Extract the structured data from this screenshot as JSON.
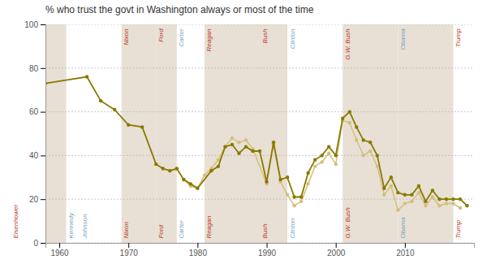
{
  "chart_data": {
    "type": "line",
    "title": "% who trust the govt in Washington always or most of the time",
    "xlim": [
      1958,
      2020
    ],
    "ylim": [
      0,
      100
    ],
    "xticks": [
      1960,
      1970,
      1980,
      1990,
      2000,
      2010
    ],
    "yticks": [
      0,
      20,
      40,
      60,
      80,
      100
    ],
    "grid": true,
    "marker": "circle",
    "line_style": "solid",
    "band_color": "#e8e0d5",
    "presidents": [
      {
        "name": "Eisenhower",
        "start": 1953,
        "end": 1961,
        "color": "#c0392b",
        "shaded": true,
        "top_label": false
      },
      {
        "name": "Kennedy",
        "start": 1961,
        "end": 1963,
        "color": "#7b9fc0",
        "shaded": false,
        "top_label": false
      },
      {
        "name": "Johnson",
        "start": 1963,
        "end": 1969,
        "color": "#7b9fc0",
        "shaded": false,
        "top_label": false
      },
      {
        "name": "Nixon",
        "start": 1969,
        "end": 1974,
        "color": "#c0392b",
        "shaded": true,
        "top_label": true
      },
      {
        "name": "Ford",
        "start": 1974,
        "end": 1977,
        "color": "#c0392b",
        "shaded": true,
        "top_label": true
      },
      {
        "name": "Carter",
        "start": 1977,
        "end": 1981,
        "color": "#7b9fc0",
        "shaded": false,
        "top_label": true
      },
      {
        "name": "Reagan",
        "start": 1981,
        "end": 1989,
        "color": "#c0392b",
        "shaded": true,
        "top_label": true
      },
      {
        "name": "Bush",
        "start": 1989,
        "end": 1993,
        "color": "#c0392b",
        "shaded": true,
        "top_label": true
      },
      {
        "name": "Clinton",
        "start": 1993,
        "end": 2001,
        "color": "#7b9fc0",
        "shaded": false,
        "top_label": true
      },
      {
        "name": "G.W. Bush",
        "start": 2001,
        "end": 2009,
        "color": "#c0392b",
        "shaded": true,
        "top_label": true
      },
      {
        "name": "Obama",
        "start": 2009,
        "end": 2017,
        "color": "#7b9fc0",
        "shaded": true,
        "top_label": true
      },
      {
        "name": "Trump",
        "start": 2017,
        "end": 2021,
        "color": "#c0392b",
        "shaded": false,
        "top_label": true
      }
    ],
    "series": [
      {
        "color": "#d4bf7a",
        "x": [
          1978,
          1979,
          1980,
          1981,
          1982,
          1983,
          1984,
          1985,
          1986,
          1987,
          1988,
          1990,
          1991,
          1992,
          1993,
          1994,
          1995,
          1996,
          1997,
          1998,
          1999,
          2000,
          2001,
          2002,
          2003,
          2004,
          2005,
          2006,
          2007,
          2008,
          2009,
          2010,
          2011,
          2012,
          2013,
          2014,
          2015,
          2016,
          2017,
          2018
        ],
        "values": [
          29,
          26,
          25,
          31,
          34,
          38,
          44,
          48,
          46,
          47,
          43,
          27,
          45,
          28,
          22,
          17,
          19,
          27,
          35,
          37,
          41,
          36,
          56,
          55,
          47,
          40,
          42,
          35,
          22,
          26,
          15,
          18,
          19,
          23,
          17,
          21,
          17,
          18,
          18,
          16
        ]
      },
      {
        "color": "#897a00",
        "x": [
          1958,
          1964,
          1966,
          1968,
          1970,
          1972,
          1974,
          1975,
          1976,
          1977,
          1978,
          1979,
          1980,
          1982,
          1983,
          1984,
          1985,
          1986,
          1987,
          1988,
          1989,
          1990,
          1991,
          1992,
          1993,
          1994,
          1995,
          1996,
          1997,
          1998,
          1999,
          2000,
          2001,
          2002,
          2003,
          2004,
          2005,
          2006,
          2007,
          2008,
          2009,
          2010,
          2011,
          2012,
          2013,
          2014,
          2015,
          2016,
          2017,
          2018,
          2019
        ],
        "values": [
          73,
          76,
          65,
          61,
          54,
          53,
          36,
          34,
          33,
          34,
          29,
          27,
          25,
          33,
          35,
          44,
          45,
          41,
          44,
          42,
          42,
          28,
          46,
          29,
          30,
          21,
          21,
          32,
          38,
          40,
          44,
          40,
          57,
          60,
          53,
          47,
          46,
          40,
          25,
          30,
          23,
          22,
          22,
          26,
          19,
          24,
          20,
          20,
          20,
          20,
          17
        ]
      }
    ]
  }
}
